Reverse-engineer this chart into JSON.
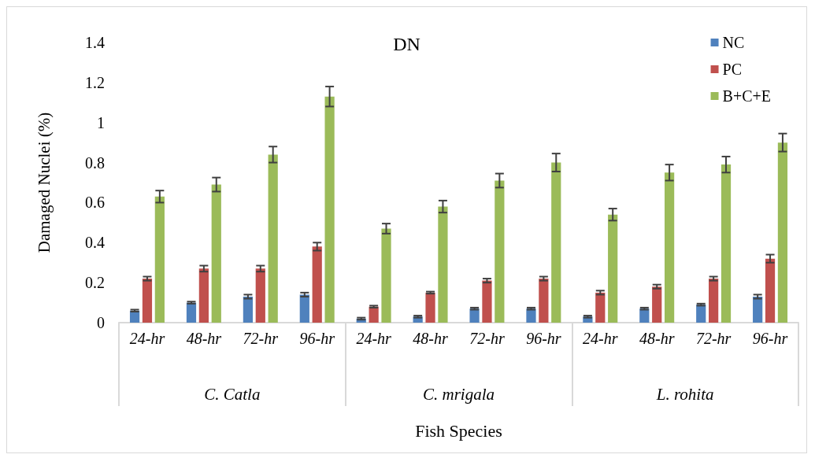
{
  "chart_data": {
    "type": "bar",
    "title": "DN",
    "xlabel": "Fish Species",
    "ylabel": "Damaged Nuclei (%)",
    "categories": [
      "24-hr",
      "48-hr",
      "72-hr",
      "96-hr",
      "24-hr",
      "48-hr",
      "72-hr",
      "96-hr",
      "24-hr",
      "48-hr",
      "72-hr",
      "96-hr"
    ],
    "annotations": [
      "C. Catla",
      "C. mrigala",
      "L. rohita"
    ],
    "series": [
      {
        "name": "NC",
        "color": "#4f81bd",
        "values": [
          0.06,
          0.1,
          0.13,
          0.14,
          0.02,
          0.03,
          0.07,
          0.07,
          0.03,
          0.07,
          0.09,
          0.13
        ],
        "errors": [
          0.005,
          0.005,
          0.01,
          0.01,
          0.005,
          0.005,
          0.005,
          0.005,
          0.005,
          0.005,
          0.005,
          0.01
        ]
      },
      {
        "name": "PC",
        "color": "#c0504d",
        "values": [
          0.22,
          0.27,
          0.27,
          0.38,
          0.08,
          0.15,
          0.21,
          0.22,
          0.15,
          0.18,
          0.22,
          0.32
        ],
        "errors": [
          0.01,
          0.015,
          0.015,
          0.02,
          0.005,
          0.005,
          0.01,
          0.01,
          0.01,
          0.01,
          0.01,
          0.02
        ]
      },
      {
        "name": "B+C+E",
        "color": "#9bbb59",
        "values": [
          0.63,
          0.69,
          0.84,
          1.13,
          0.47,
          0.58,
          0.71,
          0.8,
          0.54,
          0.75,
          0.79,
          0.9
        ],
        "errors": [
          0.03,
          0.035,
          0.04,
          0.05,
          0.025,
          0.03,
          0.035,
          0.045,
          0.03,
          0.04,
          0.04,
          0.045
        ]
      }
    ],
    "ylim": [
      0,
      1.4
    ],
    "yticks": [
      0,
      0.2,
      0.4,
      0.6,
      0.8,
      1,
      1.2,
      1.4
    ],
    "grid": false,
    "legend": "top right"
  }
}
